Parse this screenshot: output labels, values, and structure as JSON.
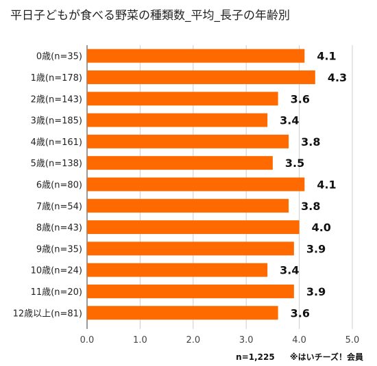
{
  "chart_data": {
    "type": "bar",
    "orientation": "horizontal",
    "title": "平日子どもが食べる野菜の種類数_平均_長子の年齢別",
    "categories": [
      "0歳(n=35)",
      "1歳(n=178)",
      "2歳(n=143)",
      "3歳(n=185)",
      "4歳(n=161)",
      "5歳(n=138)",
      "6歳(n=80)",
      "7歳(n=54)",
      "8歳(n=43)",
      "9歳(n=35)",
      "10歳(n=24)",
      "11歳(n=20)",
      "12歳以上(n=81)"
    ],
    "values": [
      4.1,
      4.3,
      3.6,
      3.4,
      3.8,
      3.5,
      4.1,
      3.8,
      4.0,
      3.9,
      3.4,
      3.9,
      3.6
    ],
    "value_labels": [
      "4.1",
      "4.3",
      "3.6",
      "3.4",
      "3.8",
      "3.5",
      "4.1",
      "3.8",
      "4.0",
      "3.9",
      "3.4",
      "3.9",
      "3.6"
    ],
    "xlim": [
      0,
      5
    ],
    "xticks": [
      "0.0",
      "1.0",
      "2.0",
      "3.0",
      "4.0",
      "5.0"
    ],
    "grid": true,
    "bar_color": "#ff6a00"
  },
  "footnote": {
    "sample": "n=1,225",
    "source": "※はいチーズ！会員"
  }
}
